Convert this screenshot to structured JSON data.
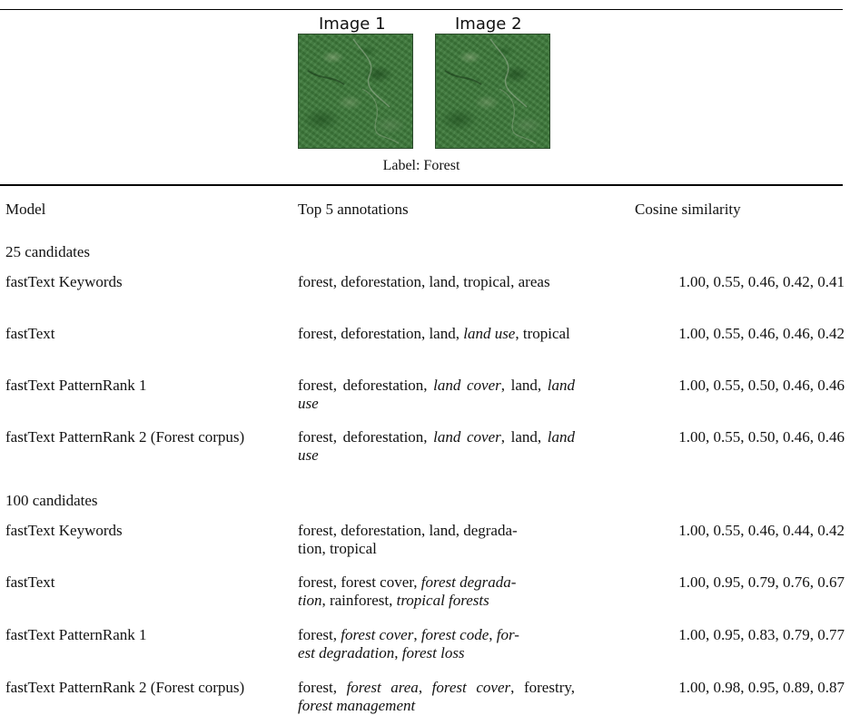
{
  "figure": {
    "image1_label": "Image 1",
    "image2_label": "Image 2",
    "caption": "Label: Forest"
  },
  "table": {
    "headers": [
      "Model",
      "Top 5 annotations",
      "Cosine similarity"
    ],
    "sections": [
      {
        "title": "25 candidates",
        "rows": [
          {
            "model": "fastText Keywords",
            "annotations": "forest, deforestation, land, tropical, areas",
            "cosine": "1.00, 0.55, 0.46, 0.42, 0.41"
          },
          {
            "model": "fastText",
            "annotations": "forest, deforestation, land, land use, tropical",
            "cosine": "1.00, 0.55, 0.46, 0.46, 0.42"
          },
          {
            "model": "fastText PatternRank 1",
            "annotations": "forest, deforestation, land cover, land, land use",
            "cosine": "1.00, 0.55, 0.50, 0.46, 0.46"
          },
          {
            "model": "fastText PatternRank 2 (Forest corpus)",
            "annotations": "forest, deforestation, land cover, land, land use",
            "cosine": "1.00, 0.55, 0.50, 0.46, 0.46"
          }
        ]
      },
      {
        "title": "100 candidates",
        "rows": [
          {
            "model": "fastText Keywords",
            "annotations": "forest, deforestation, land, degradation, tropical",
            "cosine": "1.00, 0.55, 0.46, 0.44, 0.42"
          },
          {
            "model": "fastText",
            "annotations": "forest, forest cover, forest degradation, rainforest, tropical forests",
            "cosine": "1.00, 0.95, 0.79, 0.76, 0.67"
          },
          {
            "model": "fastText PatternRank 1",
            "annotations": "forest, forest cover, forest code, forest degradation, forest loss",
            "cosine": "1.00, 0.95, 0.83, 0.79, 0.77"
          },
          {
            "model": "fastText PatternRank 2 (Forest corpus)",
            "annotations": "forest, forest area, forest cover, forestry, forest management",
            "cosine": "1.00, 0.98, 0.95, 0.89, 0.87"
          }
        ]
      }
    ]
  }
}
